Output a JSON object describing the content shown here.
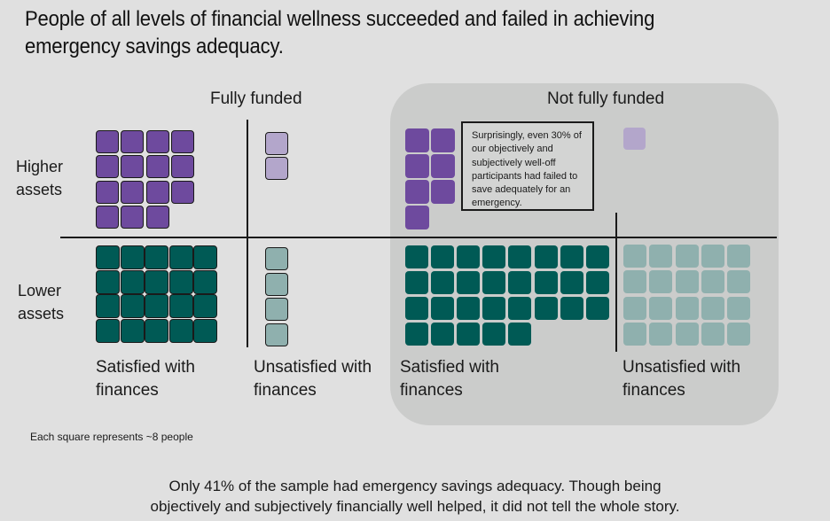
{
  "title_line1": "People of all levels of financial wellness succeeded and failed in achieving",
  "title_line2": "emergency savings adequacy.",
  "chart_data": {
    "type": "waffle",
    "unit_note": "Each square represents ~8 people",
    "column_groups": [
      "Fully funded",
      "Not fully funded"
    ],
    "columns": [
      {
        "group": "Fully funded",
        "label_line1": "Satisfied with",
        "label_line2": "finances"
      },
      {
        "group": "Fully funded",
        "label_line1": "Unsatisfied with",
        "label_line2": "finances"
      },
      {
        "group": "Not fully funded",
        "label_line1": "Satisfied with",
        "label_line2": "finances"
      },
      {
        "group": "Not fully funded",
        "label_line1": "Unsatisfied with",
        "label_line2": "finances"
      }
    ],
    "rows": [
      {
        "label_line1": "Higher",
        "label_line2": "assets"
      },
      {
        "label_line1": "Lower",
        "label_line2": "assets"
      }
    ],
    "cells": [
      {
        "row": "Higher assets",
        "group": "Fully funded",
        "satisfaction": "Satisfied",
        "squares": 15,
        "color": "#6e4a9e"
      },
      {
        "row": "Higher assets",
        "group": "Fully funded",
        "satisfaction": "Unsatisfied",
        "squares": 2,
        "color": "#b3a6cb"
      },
      {
        "row": "Higher assets",
        "group": "Not fully funded",
        "satisfaction": "Satisfied",
        "squares": 7,
        "color": "#6e4a9e"
      },
      {
        "row": "Higher assets",
        "group": "Not fully funded",
        "satisfaction": "Unsatisfied",
        "squares": 1,
        "color": "#b3a6cb"
      },
      {
        "row": "Lower assets",
        "group": "Fully funded",
        "satisfaction": "Satisfied",
        "squares": 20,
        "color": "#005a55"
      },
      {
        "row": "Lower assets",
        "group": "Fully funded",
        "satisfaction": "Unsatisfied",
        "squares": 4,
        "color": "#8fb0ae"
      },
      {
        "row": "Lower assets",
        "group": "Not fully funded",
        "satisfaction": "Satisfied",
        "squares": 29,
        "color": "#005a55"
      },
      {
        "row": "Lower assets",
        "group": "Not fully funded",
        "satisfaction": "Unsatisfied",
        "squares": 20,
        "color": "#8fb0ae"
      }
    ],
    "annotation": "Surprisingly, even 30% of our objectively and subjectively well-off participants had failed to save adequately for an emergency."
  },
  "summary_line1": "Only 41% of the sample had emergency savings adequacy. Though being",
  "summary_line2": "objectively and subjectively financially well helped, it did not tell the whole story."
}
